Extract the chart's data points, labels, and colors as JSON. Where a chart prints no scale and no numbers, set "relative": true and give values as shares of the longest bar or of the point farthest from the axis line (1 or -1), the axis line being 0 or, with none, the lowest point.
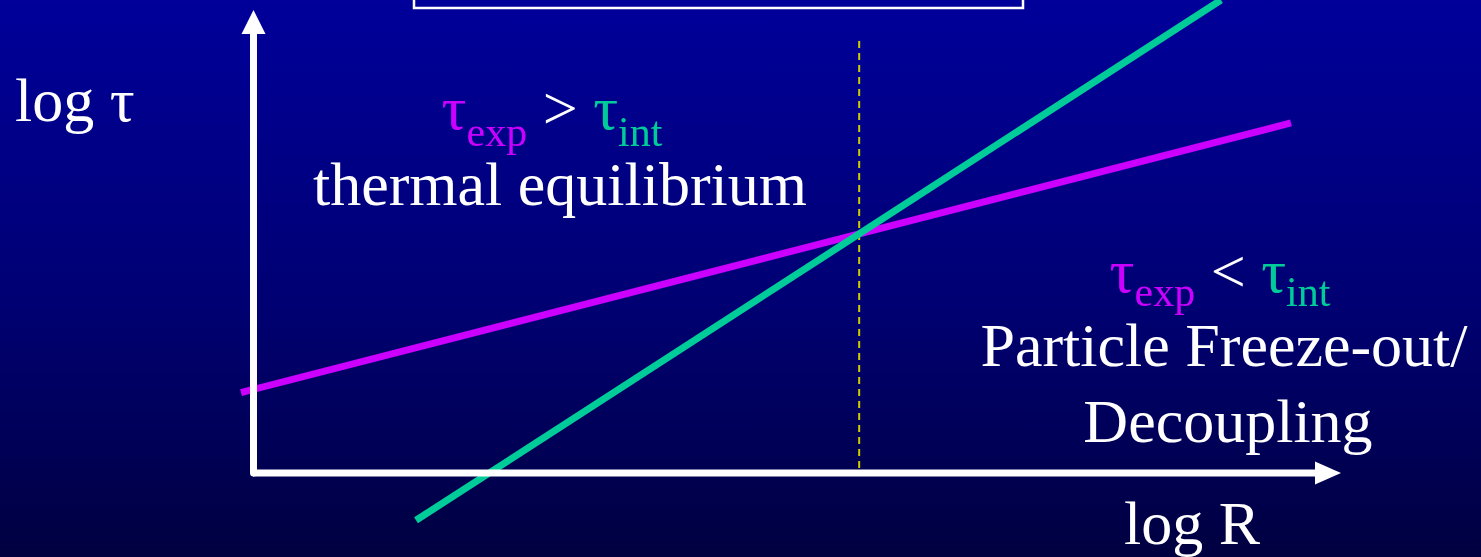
{
  "chart_data": {
    "type": "line",
    "relative": true,
    "xlabel": "log R",
    "ylabel": "log τ",
    "marker": "none",
    "categories": [
      null,
      null,
      null,
      null,
      null,
      null,
      null,
      null,
      null,
      null,
      null,
      null,
      null,
      null,
      null,
      null,
      null,
      null,
      null,
      null,
      null,
      null,
      null,
      null,
      null,
      null,
      null,
      null,
      null,
      null,
      null
    ],
    "series": [
      {
        "color": "#cc00ff",
        "values": [
          0.17,
          null,
          null,
          null,
          null,
          null,
          null,
          null,
          null,
          null,
          null,
          null,
          null,
          null,
          null,
          null,
          null,
          null,
          null,
          null,
          null,
          null,
          null,
          null,
          null,
          null,
          null,
          null,
          null,
          null,
          0.74
        ]
      },
      {
        "color": "#00cc99",
        "values": [
          null,
          null,
          null,
          null,
          null,
          -0.1,
          null,
          null,
          null,
          null,
          null,
          null,
          null,
          null,
          null,
          null,
          null,
          null,
          null,
          null,
          null,
          null,
          null,
          null,
          null,
          null,
          null,
          null,
          1,
          null,
          null
        ]
      }
    ],
    "ref_lines": [
      {
        "axis": "x",
        "color": "#cccc00",
        "line_style": "dashed"
      }
    ],
    "annotations": [
      "τ$_{exp}$ > τ$_{int}$",
      "thermal equilibrium",
      "τ$_{exp}$ < τ$_{int}$",
      "Particle Freeze-out/",
      "Decoupling"
    ]
  }
}
